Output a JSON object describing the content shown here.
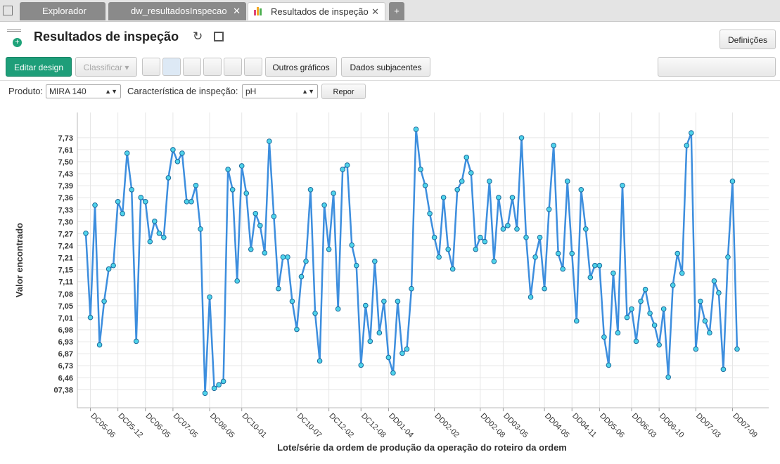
{
  "ui": {
    "tabs": [
      "Explorador",
      "dw_resultadosInspecao",
      "Resultados de inspeção"
    ],
    "title": "Resultados de inspeção",
    "settings": "Definições",
    "edit_design": "Editar design",
    "sort": "Classificar",
    "other_charts": "Outros gráficos",
    "underlying_data": "Dados subjacentes",
    "product_label": "Produto:",
    "product_value": "MIRA 140",
    "characteristic_label": "Característica de inspeção:",
    "characteristic_value": "pH",
    "reset": "Repor"
  },
  "chart_data": {
    "type": "line",
    "y_label": "Valor encontrado",
    "x_label": "Lote/série da ordem de produção da operação do roteiro da ordem",
    "color": "#3d8ede",
    "marker_color": "#4fd3ea",
    "grid": true,
    "categories": [
      null,
      "DC05-06",
      null,
      null,
      null,
      null,
      null,
      "DC05-12",
      null,
      null,
      null,
      null,
      null,
      "DC06-05",
      null,
      null,
      null,
      null,
      null,
      "DC07-05",
      null,
      null,
      null,
      null,
      null,
      null,
      null,
      "DC08-05",
      null,
      null,
      null,
      null,
      null,
      null,
      "DC10-01",
      null,
      null,
      null,
      null,
      null,
      null,
      null,
      null,
      null,
      null,
      null,
      "DC10-07",
      null,
      null,
      null,
      null,
      null,
      null,
      "DC12-02",
      null,
      null,
      null,
      null,
      null,
      null,
      "DC12-08",
      null,
      null,
      null,
      null,
      null,
      "DD01-04",
      null,
      null,
      null,
      null,
      null,
      null,
      null,
      null,
      null,
      "DD02-02",
      null,
      null,
      null,
      null,
      null,
      null,
      null,
      null,
      null,
      "DD02-08",
      null,
      null,
      null,
      null,
      "DD03-05",
      null,
      null,
      null,
      null,
      null,
      null,
      null,
      null,
      "DD04-05",
      null,
      null,
      null,
      null,
      null,
      "DD04-11",
      null,
      null,
      null,
      null,
      null,
      "DD05-06",
      null,
      null,
      null,
      null,
      null,
      null,
      "DD06-03",
      null,
      null,
      null,
      null,
      null,
      "DD06-10",
      null,
      null,
      null,
      null,
      null,
      null,
      null,
      "DD07-03",
      null,
      null,
      null,
      null,
      null,
      null,
      null,
      "DD07-09",
      null
    ],
    "values": [
      13.04,
      6.02,
      15.38,
      3.74,
      7.37,
      10.06,
      10.35,
      15.67,
      14.68,
      19.71,
      16.67,
      4.04,
      16.02,
      15.67,
      12.34,
      14.04,
      13.04,
      12.69,
      17.66,
      20.0,
      19.01,
      19.71,
      15.67,
      15.67,
      17.02,
      13.39,
      -0.29,
      7.72,
      0.12,
      0.41,
      0.7,
      18.36,
      16.67,
      9.06,
      18.65,
      16.37,
      11.7,
      14.68,
      13.68,
      11.4,
      20.7,
      14.44,
      8.42,
      11.05,
      11.05,
      7.37,
      5.03,
      9.42,
      10.7,
      16.67,
      6.37,
      2.4,
      15.38,
      11.7,
      16.37,
      6.73,
      18.36,
      18.71,
      12.05,
      10.35,
      2.05,
      7.02,
      4.04,
      10.7,
      4.74,
      7.37,
      2.69,
      1.4,
      7.37,
      3.04,
      3.39,
      8.42,
      21.7,
      18.36,
      17.02,
      14.68,
      12.69,
      11.05,
      16.02,
      11.7,
      10.06,
      16.67,
      17.37,
      19.36,
      18.07,
      11.7,
      12.69,
      12.34,
      17.37,
      10.7,
      16.02,
      13.39,
      13.68,
      16.02,
      13.39,
      20.99,
      12.69,
      7.72,
      11.05,
      12.69,
      8.42,
      15.03,
      20.35,
      11.35,
      10.06,
      17.37,
      11.35,
      5.73,
      16.67,
      13.39,
      9.36,
      10.35,
      10.35,
      4.39,
      2.05,
      9.71,
      4.74,
      17.02,
      6.02,
      6.73,
      4.04,
      7.37,
      8.36,
      6.37,
      5.38,
      3.74,
      6.73,
      1.05,
      8.71,
      11.35,
      9.71,
      20.35,
      21.4,
      3.39,
      7.37,
      5.73,
      4.74,
      9.06,
      8.07,
      1.7,
      11.05,
      17.37,
      3.39
    ],
    "ylim": [
      -1.5,
      23.1
    ],
    "yticks": [
      {
        "value": 0,
        "label": "07,38"
      },
      {
        "value": 1,
        "label": "6,46"
      },
      {
        "value": 2,
        "label": "6,73"
      },
      {
        "value": 3,
        "label": "6,87"
      },
      {
        "value": 4,
        "label": "6,93"
      },
      {
        "value": 5,
        "label": "6,98"
      },
      {
        "value": 6,
        "label": "7,01"
      },
      {
        "value": 7,
        "label": "7,05"
      },
      {
        "value": 8,
        "label": "7,08"
      },
      {
        "value": 9,
        "label": "7,11"
      },
      {
        "value": 10,
        "label": "7,15"
      },
      {
        "value": 11,
        "label": "7,21"
      },
      {
        "value": 12,
        "label": "7,24"
      },
      {
        "value": 13,
        "label": "7,27"
      },
      {
        "value": 14,
        "label": "7,30"
      },
      {
        "value": 15,
        "label": "7,33"
      },
      {
        "value": 16,
        "label": "7,36"
      },
      {
        "value": 17,
        "label": "7,39"
      },
      {
        "value": 18,
        "label": "7,43"
      },
      {
        "value": 19,
        "label": "7,50"
      },
      {
        "value": 20,
        "label": "7,61"
      },
      {
        "value": 21,
        "label": "7,73"
      }
    ]
  }
}
